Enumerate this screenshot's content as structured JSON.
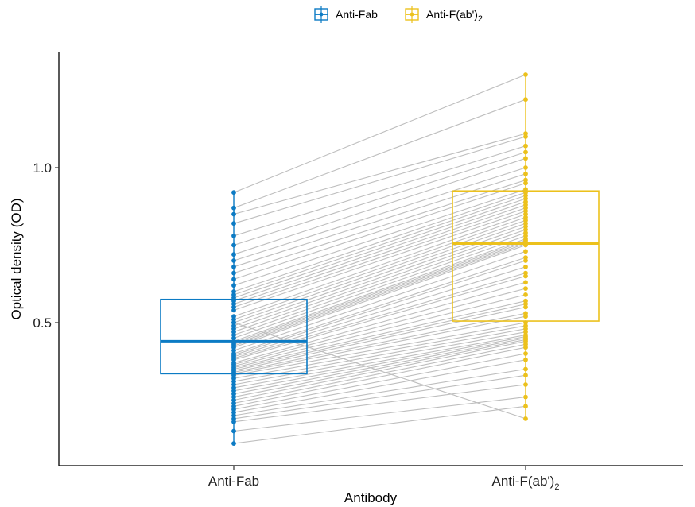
{
  "chart_data": {
    "type": "paired-box",
    "title": "",
    "xlabel": "Antibody",
    "ylabel": "Optical density (OD)",
    "ylim": [
      0.07,
      1.35
    ],
    "yticks": [
      0.5,
      1.0
    ],
    "ytick_labels": [
      "0.5",
      "1.0"
    ],
    "categories": [
      "Anti-Fab",
      "Anti-F(ab')2"
    ],
    "category_labels": [
      {
        "main": "Anti-Fab",
        "sub": ""
      },
      {
        "main": "Anti-F(ab')",
        "sub": "2"
      }
    ],
    "legend": {
      "position": "top",
      "entries": [
        {
          "main": "Anti-Fab",
          "sub": "",
          "color": "#0C7BC4"
        },
        {
          "main": "Anti-F(ab')",
          "sub": "2",
          "color": "#ECC11C"
        }
      ]
    },
    "colors": {
      "anti_fab": "#0C7BC4",
      "anti_fab2": "#ECC11C",
      "pair_line": "#BEBEBE"
    },
    "boxes": [
      {
        "group": "Anti-Fab",
        "q1": 0.335,
        "median": 0.44,
        "q3": 0.575,
        "min": 0.11,
        "max": 0.92
      },
      {
        "group": "Anti-F(ab')2",
        "q1": 0.505,
        "median": 0.755,
        "q3": 0.925,
        "min": 0.19,
        "max": 1.3
      }
    ],
    "pairs": [
      [
        0.92,
        1.3
      ],
      [
        0.87,
        1.22
      ],
      [
        0.85,
        1.11
      ],
      [
        0.82,
        1.1
      ],
      [
        0.78,
        1.07
      ],
      [
        0.75,
        1.05
      ],
      [
        0.72,
        1.03
      ],
      [
        0.7,
        1.0
      ],
      [
        0.68,
        0.98
      ],
      [
        0.66,
        0.96
      ],
      [
        0.64,
        0.95
      ],
      [
        0.62,
        0.93
      ],
      [
        0.6,
        0.92
      ],
      [
        0.59,
        0.91
      ],
      [
        0.58,
        0.9
      ],
      [
        0.57,
        0.89
      ],
      [
        0.56,
        0.88
      ],
      [
        0.55,
        0.87
      ],
      [
        0.54,
        0.86
      ],
      [
        0.52,
        0.85
      ],
      [
        0.51,
        0.84
      ],
      [
        0.5,
        0.83
      ],
      [
        0.49,
        0.82
      ],
      [
        0.48,
        0.81
      ],
      [
        0.47,
        0.8
      ],
      [
        0.46,
        0.79
      ],
      [
        0.45,
        0.78
      ],
      [
        0.44,
        0.77
      ],
      [
        0.435,
        0.765
      ],
      [
        0.43,
        0.76
      ],
      [
        0.425,
        0.755
      ],
      [
        0.42,
        0.75
      ],
      [
        0.41,
        0.73
      ],
      [
        0.4,
        0.71
      ],
      [
        0.395,
        0.7
      ],
      [
        0.39,
        0.68
      ],
      [
        0.385,
        0.66
      ],
      [
        0.38,
        0.65
      ],
      [
        0.37,
        0.63
      ],
      [
        0.365,
        0.61
      ],
      [
        0.36,
        0.59
      ],
      [
        0.355,
        0.57
      ],
      [
        0.35,
        0.56
      ],
      [
        0.345,
        0.55
      ],
      [
        0.34,
        0.53
      ],
      [
        0.335,
        0.52
      ],
      [
        0.33,
        0.5
      ],
      [
        0.32,
        0.49
      ],
      [
        0.31,
        0.48
      ],
      [
        0.3,
        0.47
      ],
      [
        0.29,
        0.46
      ],
      [
        0.28,
        0.455
      ],
      [
        0.27,
        0.45
      ],
      [
        0.26,
        0.445
      ],
      [
        0.25,
        0.44
      ],
      [
        0.24,
        0.43
      ],
      [
        0.23,
        0.42
      ],
      [
        0.22,
        0.4
      ],
      [
        0.21,
        0.38
      ],
      [
        0.2,
        0.35
      ],
      [
        0.19,
        0.33
      ],
      [
        0.18,
        0.3
      ],
      [
        0.15,
        0.26
      ],
      [
        0.11,
        0.23
      ],
      [
        0.5,
        0.19
      ]
    ]
  }
}
